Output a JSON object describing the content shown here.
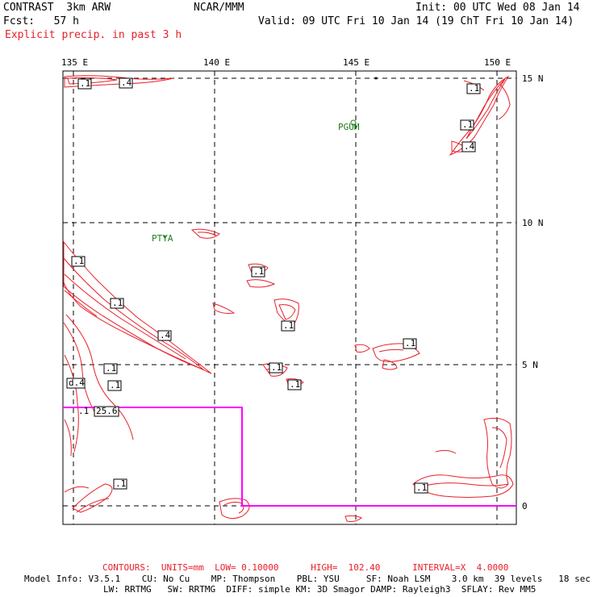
{
  "header": {
    "model_title": "CONTRAST  3km ARW",
    "organization": "NCAR/MMM",
    "init_time": "Init: 00 UTC Wed 08 Jan 14",
    "forecast_hour": "Fcst:   57 h",
    "valid_time": "Valid: 09 UTC Fri 10 Jan 14 (19 ChT Fri 10 Jan 14)",
    "field_title": "Explicit precip. in past 3 h"
  },
  "map": {
    "lon_labels": [
      "135 E",
      "140 E",
      "145 E",
      "150 E"
    ],
    "lat_labels": [
      "15 N",
      "10 N",
      "5 N",
      "0"
    ],
    "stations": [
      {
        "name": "PGUM"
      },
      {
        "name": "PTYA"
      }
    ],
    "contour_labels": [
      ".1",
      ".4",
      ".1",
      ".1",
      ".4",
      ".1",
      ".1",
      ".4",
      ".1",
      ".1",
      "d.4",
      ".1",
      "25.6",
      ".1",
      ".1",
      ".1",
      ".1",
      ".1",
      ".1",
      ".1"
    ]
  },
  "footer": {
    "contours_line": "CONTOURS:  UNITS=mm  LOW= 0.10000      HIGH=  102.40      INTERVAL=X  4.0000",
    "model_info_1": "Model Info: V3.5.1    CU: No Cu    MP: Thompson    PBL: YSU     SF: Noah LSM    3.0 km  39 levels   18 sec",
    "model_info_2": "LW: RRTMG   SW: RRTMG  DIFF: simple KM: 3D Smagor DAMP: Rayleigh3  SFLAY: Rev MM5"
  },
  "colors": {
    "contour": "#e8202a",
    "domain_box": "#ff00ff",
    "station": "#1a7f1a",
    "grid": "#000000"
  }
}
